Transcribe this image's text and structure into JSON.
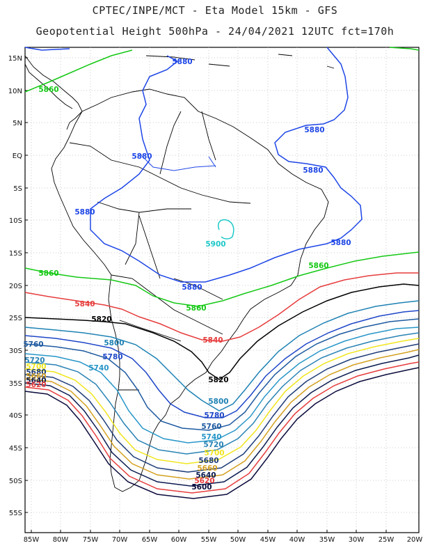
{
  "title_line1": "CPTEC/INPE/MCT  -   Eta Model 15km  - GFS",
  "title_line2": "Geopotential Height 500hPa  - 24/04/2021 12UTC fct=170h",
  "lat_labels": [
    "15N",
    "10N",
    "5N",
    "EQ",
    "5S",
    "10S",
    "15S",
    "20S",
    "25S",
    "30S",
    "35S",
    "40S",
    "45S",
    "50S",
    "55S"
  ],
  "lon_labels": [
    "85W",
    "80W",
    "75W",
    "70W",
    "65W",
    "60W",
    "55W",
    "50W",
    "45W",
    "40W",
    "35W",
    "30W",
    "25W",
    "20W"
  ],
  "contour_labels": {
    "c5900": "5900",
    "c5880": "5880",
    "c5860": "5860",
    "c5840": "5840",
    "c5820": "5820",
    "c5800": "5800",
    "c5780": "5780",
    "c5760": "5760",
    "c5740": "5740",
    "c5720": "5720",
    "c5700": "5700",
    "c5680": "5680",
    "c5660": "5660",
    "c5640": "5640",
    "c5620": "5620",
    "c5600": "5600"
  },
  "colors": {
    "c5900": "#1ec8c8",
    "c5880": "#1e46e6",
    "c5860": "#14c814",
    "c5840": "#e63c3c",
    "c5820": "#000000",
    "c5800": "#1e82b4",
    "c5780": "#1e46c8",
    "c5760": "#1e5aa0",
    "c5740": "#2896c8",
    "c5720": "#2882b4",
    "c5700": "#f0e61e",
    "c5680": "#1e3c78",
    "c5660": "#d4a020",
    "c5640": "#0a1a50",
    "c5620": "#e63c3c",
    "c5600": "#0a0a3c"
  }
}
